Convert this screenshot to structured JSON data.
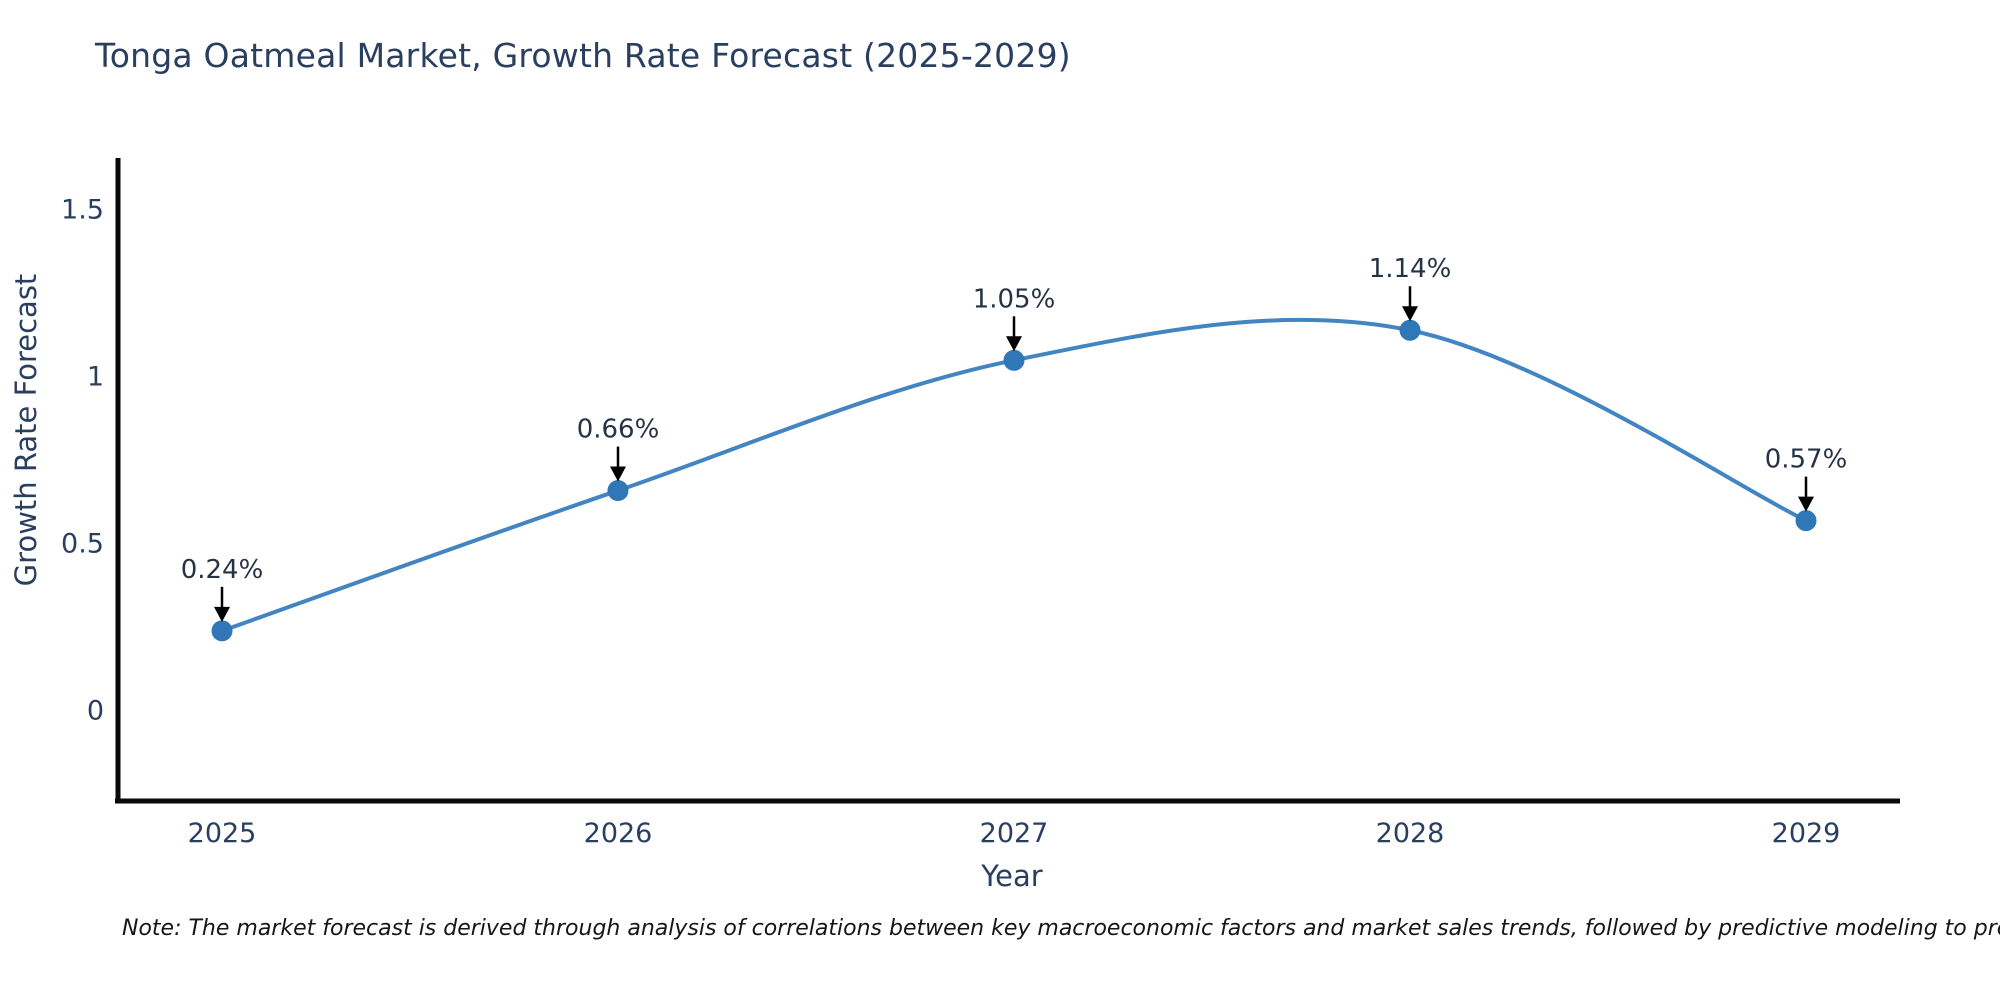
{
  "chart_data": {
    "type": "line",
    "curve": "spline",
    "title": "Tonga Oatmeal Market, Growth Rate Forecast (2025-2029)",
    "x": [
      "2025",
      "2026",
      "2027",
      "2028",
      "2029"
    ],
    "values": [
      0.24,
      0.66,
      1.05,
      1.14,
      0.57
    ],
    "point_labels": [
      "0.24%",
      "0.66%",
      "1.05%",
      "1.14%",
      "0.57%"
    ],
    "xlabel": "Year",
    "ylabel": "Growth Rate Forecast",
    "yticks": {
      "values": [
        0,
        0.5,
        1,
        1.5
      ],
      "labels": [
        "0",
        "0.5",
        "1",
        "1.5"
      ]
    },
    "ylim": [
      -0.3,
      1.65
    ],
    "grid": false,
    "legend": "none",
    "colors": {
      "line": "#4285c2",
      "marker": "#2f77b6",
      "arrow": "#000000",
      "axis": "#0a0a0a",
      "tick_text": "#2a3f5f",
      "annotation_text": "#253344"
    }
  },
  "footnote": "Note: The market forecast is derived through analysis of correlations between key macroeconomic factors and market sales trends, followed by predictive modeling to project future sales"
}
